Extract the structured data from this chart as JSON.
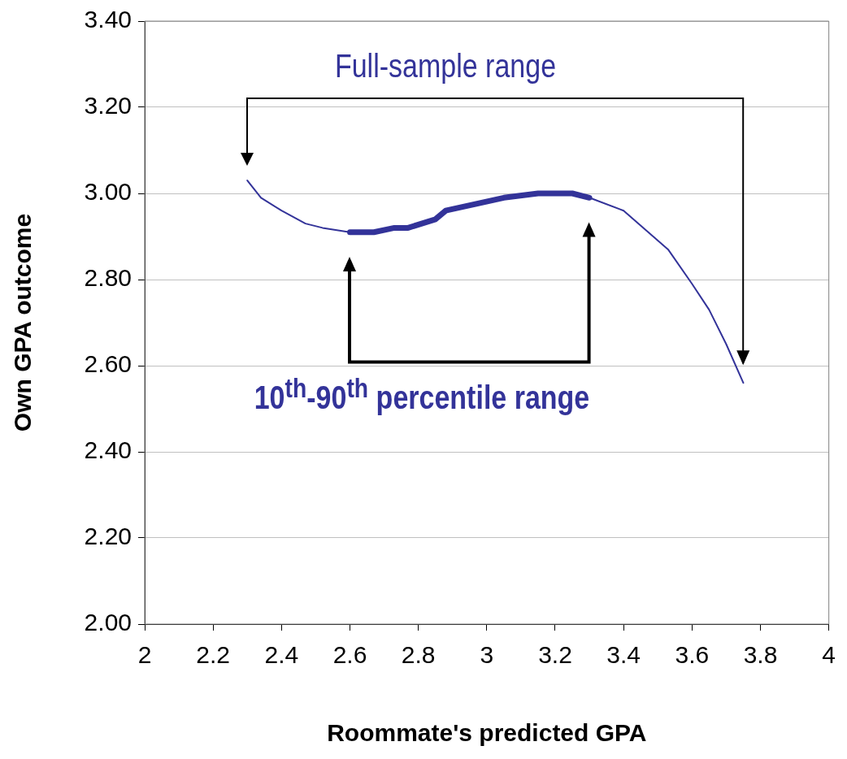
{
  "chart_data": {
    "type": "line",
    "xlabel": "Roommate's predicted GPA",
    "ylabel": "Own GPA outcome",
    "xlim": [
      2,
      4
    ],
    "xticks": [
      2,
      2.2,
      2.4,
      2.6,
      2.8,
      3,
      3.2,
      3.4,
      3.6,
      3.8,
      4
    ],
    "ylim": [
      2,
      3.4
    ],
    "yticks": [
      {
        "value": 2,
        "label": "2.00"
      },
      {
        "value": 2.2,
        "label": "2.20"
      },
      {
        "value": 2.4,
        "label": "2.40"
      },
      {
        "value": 2.6,
        "label": "2.60"
      },
      {
        "value": 2.8,
        "label": "2.80"
      },
      {
        "value": 3,
        "label": "3.00"
      },
      {
        "value": 3.2,
        "label": "3.20"
      },
      {
        "value": 3.4,
        "label": "3.40"
      }
    ],
    "grid": "y",
    "marker": "none",
    "line_style": "solid",
    "series": [
      {
        "color": "#333399",
        "x": [
          2.3,
          2.34,
          2.4,
          2.47,
          2.52,
          2.6,
          2.67,
          2.73,
          2.77,
          2.85,
          2.88,
          3.05,
          3.15,
          3.25,
          3.3,
          3.4,
          3.53,
          3.6,
          3.65,
          3.7,
          3.75
        ],
        "values": [
          3.03,
          2.99,
          2.96,
          2.93,
          2.92,
          2.91,
          2.91,
          2.92,
          2.92,
          2.94,
          2.96,
          2.99,
          3,
          3,
          2.99,
          2.96,
          2.87,
          2.79,
          2.73,
          2.65,
          2.56
        ]
      },
      {
        "color": "#333399",
        "x": [
          2.6,
          2.67,
          2.73,
          2.77,
          2.85,
          2.88,
          3.05,
          3.15,
          3.25,
          3.3
        ],
        "values": [
          2.91,
          2.91,
          2.92,
          2.92,
          2.94,
          2.96,
          2.99,
          3,
          3,
          2.99
        ]
      }
    ],
    "annotations": [
      "Full-sample range",
      "10$^{th}$-90$^{th}$ percentile range"
    ]
  }
}
